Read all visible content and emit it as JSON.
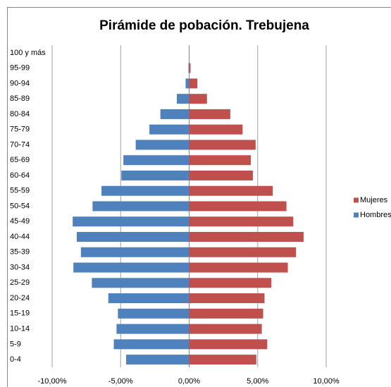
{
  "chart_data": {
    "type": "bar",
    "orientation": "horizontal",
    "title": "Pirámide de pobación. Trebujena",
    "categories": [
      "0-4",
      "5-9",
      "10-14",
      "15-19",
      "20-24",
      "25-29",
      "30-34",
      "35-39",
      "40-44",
      "45-49",
      "50-54",
      "55-59",
      "60-64",
      "65-69",
      "70-74",
      "75-79",
      "80-84",
      "85-89",
      "90-94",
      "95-99",
      "100 y más"
    ],
    "series": [
      {
        "name": "Mujeres",
        "color": "#c0504d",
        "values": [
          4.9,
          5.7,
          5.3,
          5.4,
          5.5,
          6.0,
          7.2,
          7.8,
          8.35,
          7.6,
          7.1,
          6.1,
          4.65,
          4.5,
          4.85,
          3.9,
          3.0,
          1.3,
          0.6,
          0.1,
          0
        ]
      },
      {
        "name": "Hombres",
        "color": "#4f81bd",
        "values": [
          -4.6,
          -5.5,
          -5.3,
          -5.2,
          -5.9,
          -7.1,
          -8.45,
          -7.9,
          -8.2,
          -8.5,
          -7.05,
          -6.4,
          -4.95,
          -4.8,
          -3.9,
          -2.9,
          -2.1,
          -0.9,
          -0.26,
          -0.05,
          0
        ]
      }
    ],
    "xlim": [
      -10,
      10
    ],
    "xticks": [
      {
        "value": -10,
        "label": "-10,00%"
      },
      {
        "value": -5,
        "label": "-5,00%"
      },
      {
        "value": 0,
        "label": "0,00%"
      },
      {
        "value": 5,
        "label": "5,00%"
      },
      {
        "value": 10,
        "label": "10,00%"
      }
    ],
    "grid": true,
    "legend": "right"
  }
}
